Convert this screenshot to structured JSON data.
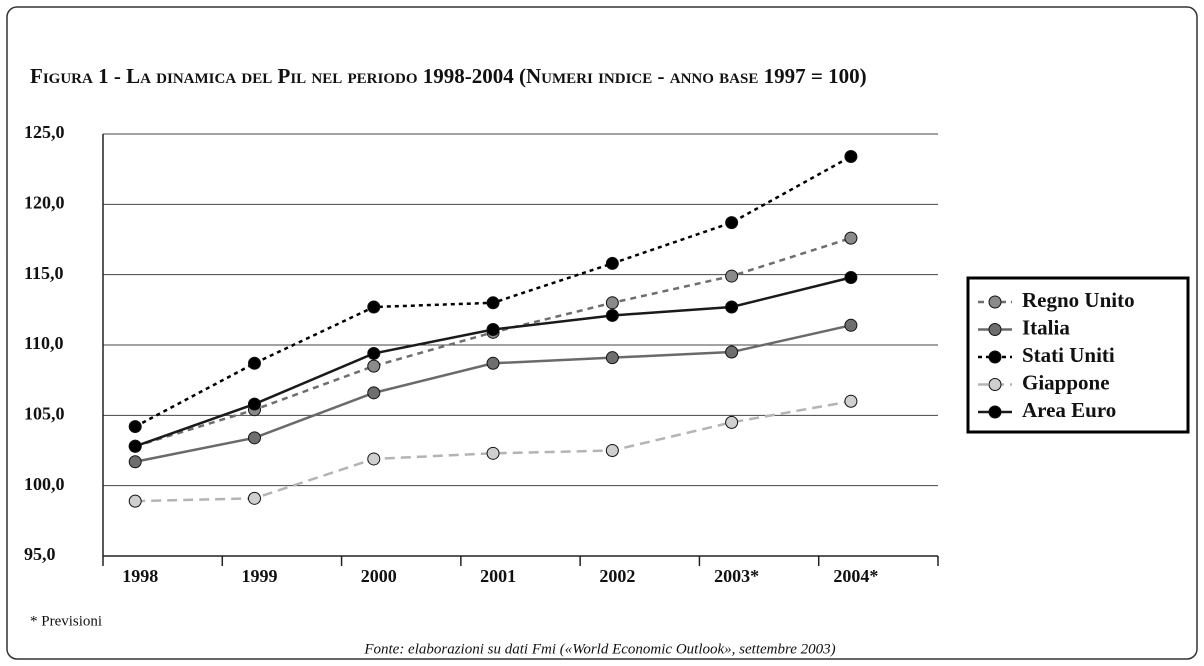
{
  "chart_data": {
    "type": "line",
    "title": "Figura 1 - La dinamica del Pil nel periodo 1998-2004 (Numeri indice - anno base 1997 = 100)",
    "categories": [
      "1998",
      "1999",
      "2000",
      "2001",
      "2002",
      "2003*",
      "2004*"
    ],
    "series": [
      {
        "name": "Regno Unito",
        "color": "#6e6e6e",
        "marker": "#8a8a8a",
        "dash": "6,5",
        "values": [
          102.8,
          105.4,
          108.5,
          110.9,
          113.0,
          114.9,
          117.6
        ]
      },
      {
        "name": "Italia",
        "color": "#6a6a6a",
        "marker": "#6e6e6e",
        "dash": "none",
        "values": [
          101.7,
          103.4,
          106.6,
          108.7,
          109.1,
          109.5,
          111.4
        ]
      },
      {
        "name": "Stati Uniti",
        "color": "#000000",
        "marker": "#000000",
        "dash": "4,4",
        "values": [
          104.2,
          108.7,
          112.7,
          113.0,
          115.8,
          118.7,
          123.4
        ]
      },
      {
        "name": "Giappone",
        "color": "#b4b4b4",
        "marker": "#cfcfcf",
        "dash": "10,6",
        "values": [
          98.9,
          99.1,
          101.9,
          102.3,
          102.5,
          104.5,
          106.0
        ]
      },
      {
        "name": "Area Euro",
        "color": "#1a1a1a",
        "marker": "#000000",
        "dash": "none",
        "values": [
          102.8,
          105.8,
          109.4,
          111.1,
          112.1,
          112.7,
          114.8
        ]
      }
    ],
    "ylim": [
      95,
      125
    ],
    "yticks": [
      {
        "value": 95,
        "label": "95,0"
      },
      {
        "value": 100,
        "label": "100,0"
      },
      {
        "value": 105,
        "label": "105,0"
      },
      {
        "value": 110,
        "label": "110,0"
      },
      {
        "value": 115,
        "label": "115,0"
      },
      {
        "value": 120,
        "label": "120,0"
      },
      {
        "value": 125,
        "label": "125,0"
      }
    ],
    "grid": true,
    "legend": "right",
    "footnote": "* Previsioni",
    "source": "Fonte: elaborazioni su dati Fmi («World Economic Outlook», settembre 2003)"
  }
}
